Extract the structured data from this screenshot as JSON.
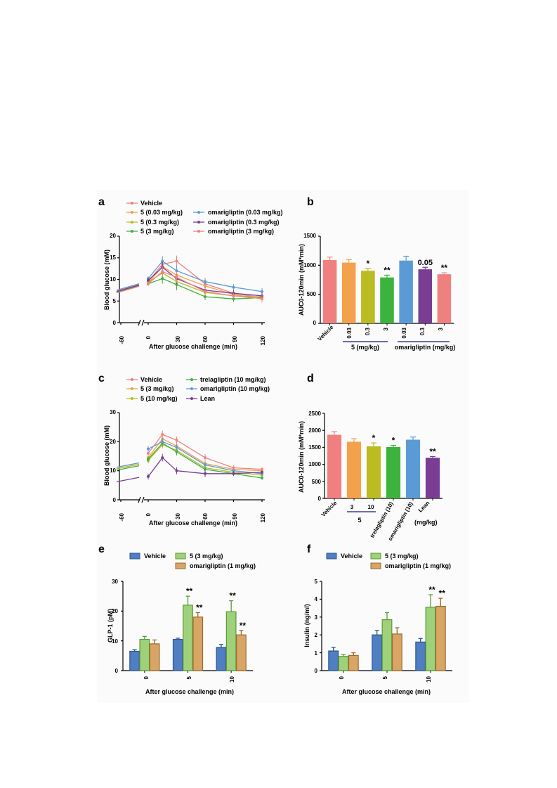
{
  "colors": {
    "vehicle": "#f08080",
    "dose_0_03": "#f4a14b",
    "dose_0_3": "#bbbb22",
    "dose_3": "#3cb33c",
    "omari_0_03": "#5b9bd5",
    "omari_0_3": "#7a3d94",
    "omari_3": "#ef8080",
    "lean": "#7a3d94",
    "bar_vehicle": "#4f7fc2",
    "bar_5": "#9fd07a",
    "bar_omari": "#d9a564"
  },
  "chart_data": [
    {
      "panel": "a",
      "type": "line",
      "ylabel": "Blood glucose (mM)",
      "xlabel": "After glucose challenge (min)",
      "x": [
        -60,
        0,
        15,
        30,
        60,
        90,
        120
      ],
      "xticks": [
        "-60",
        "0",
        "30",
        "60",
        "90",
        "120"
      ],
      "ylim": [
        0,
        20
      ],
      "yticks": [
        "0",
        "5",
        "10",
        "15",
        "20"
      ],
      "legend": [
        "Vehicle",
        "5 (0.03 mg/kg)",
        "5 (0.3 mg/kg)",
        "5 (3 mg/kg)",
        "omarigliptin (0.03 mg/kg)",
        "omarigliptin (0.3 mg/kg)",
        "omarigliptin (3 mg/kg)"
      ],
      "series": [
        {
          "name": "Vehicle",
          "values": [
            7.6,
            9.5,
            13.5,
            14.2,
            9.0,
            6.8,
            5.8
          ]
        },
        {
          "name": "5 (0.03 mg/kg)",
          "values": [
            7.4,
            9.2,
            13.0,
            11.0,
            8.5,
            6.5,
            5.5
          ]
        },
        {
          "name": "5 (0.3 mg/kg)",
          "values": [
            7.5,
            9.4,
            11.5,
            9.5,
            7.0,
            6.2,
            6.0
          ]
        },
        {
          "name": "5 (3 mg/kg)",
          "values": [
            7.3,
            9.0,
            10.2,
            8.8,
            6.0,
            5.5,
            5.8
          ]
        },
        {
          "name": "omarigliptin (0.03 mg/kg)",
          "values": [
            7.8,
            10.2,
            14.2,
            12.0,
            9.5,
            8.2,
            7.2
          ]
        },
        {
          "name": "omarigliptin (0.3 mg/kg)",
          "values": [
            7.5,
            9.8,
            12.8,
            10.2,
            7.5,
            6.8,
            6.2
          ]
        },
        {
          "name": "omarigliptin (3 mg/kg)",
          "values": [
            7.2,
            9.0,
            11.8,
            10.5,
            7.2,
            6.2,
            5.6
          ]
        }
      ]
    },
    {
      "panel": "b",
      "type": "bar",
      "ylabel": "AUC0-120min (mM*min)",
      "categories": [
        "Vehicle",
        "0.03",
        "0.3",
        "3",
        "0.03",
        "0.3",
        "3"
      ],
      "values": [
        1090,
        1045,
        905,
        790,
        1080,
        930,
        845
      ],
      "errors": [
        50,
        50,
        40,
        40,
        75,
        35,
        25
      ],
      "ylim": [
        0,
        1500
      ],
      "yticks": [
        "0",
        "500",
        "1000",
        "1500"
      ],
      "annotations": [
        "",
        "",
        "*",
        "**",
        "",
        "0.05",
        "**"
      ],
      "group_labels": [
        "5 (mg/kg)",
        "omarigliptin (mg/kg)"
      ]
    },
    {
      "panel": "c",
      "type": "line",
      "ylabel": "Blood glucose (mM)",
      "xlabel": "After glucose challenge (min)",
      "x": [
        -60,
        0,
        15,
        30,
        60,
        90,
        120
      ],
      "xticks": [
        "-60",
        "0",
        "30",
        "60",
        "90",
        "120"
      ],
      "ylim": [
        0,
        30
      ],
      "yticks": [
        "0",
        "10",
        "20",
        "30"
      ],
      "legend": [
        "Vehicle",
        "5 (3 mg/kg)",
        "5 (10 mg/kg)",
        "trelagliptin (10 mg/kg)",
        "omarigliptin (10 mg/kg)",
        "Lean"
      ],
      "series": [
        {
          "name": "Vehicle",
          "values": [
            11.0,
            16.0,
            22.5,
            20.5,
            14.5,
            11.0,
            10.5
          ]
        },
        {
          "name": "5 (3 mg/kg)",
          "values": [
            11.5,
            14.5,
            21.0,
            18.5,
            12.5,
            10.5,
            10.0
          ]
        },
        {
          "name": "5 (10 mg/kg)",
          "values": [
            11.0,
            13.5,
            19.0,
            17.0,
            11.0,
            9.5,
            8.5
          ]
        },
        {
          "name": "trelagliptin (10 mg/kg)",
          "values": [
            10.5,
            14.0,
            19.5,
            16.5,
            10.5,
            9.0,
            7.5
          ]
        },
        {
          "name": "omarigliptin (10 mg/kg)",
          "values": [
            11.5,
            17.5,
            20.0,
            18.0,
            12.0,
            10.0,
            9.0
          ]
        },
        {
          "name": "Lean",
          "values": [
            6.5,
            8.0,
            14.5,
            10.0,
            9.0,
            9.0,
            9.5
          ]
        }
      ]
    },
    {
      "panel": "d",
      "type": "bar",
      "ylabel": "AUC0-120min (mM*min)",
      "categories": [
        "Vehicle",
        "3",
        "10",
        "trelagliptin (10)",
        "omarigliptin (10)",
        "Lean"
      ],
      "values": [
        1870,
        1665,
        1530,
        1510,
        1725,
        1195
      ],
      "errors": [
        90,
        90,
        100,
        50,
        80,
        35
      ],
      "ylim": [
        0,
        2500
      ],
      "yticks": [
        "0",
        "500",
        "1000",
        "1500",
        "2000",
        "2500"
      ],
      "annotations": [
        "",
        "",
        "*",
        "*",
        "",
        "**"
      ],
      "group_labels": [
        "5",
        "(mg/kg)"
      ]
    },
    {
      "panel": "e",
      "type": "bar",
      "ylabel": "GLP-1 (pM)",
      "xlabel": "After glucose challenge (min)",
      "categories": [
        "0",
        "5",
        "10"
      ],
      "ylim": [
        0,
        30
      ],
      "yticks": [
        "0",
        "10",
        "20",
        "30"
      ],
      "legend": [
        "Vehicle",
        "5 (3 mg/kg)",
        "omarigliptin (1 mg/kg)"
      ],
      "series": [
        {
          "name": "Vehicle",
          "values": [
            6.5,
            10.5,
            7.8
          ],
          "errors": [
            0.5,
            0.4,
            1.0
          ]
        },
        {
          "name": "5 (3 mg/kg)",
          "values": [
            10.5,
            22.0,
            19.8
          ],
          "errors": [
            1.0,
            3.0,
            3.7
          ]
        },
        {
          "name": "omarigliptin (1 mg/kg)",
          "values": [
            9.0,
            18.0,
            12.0
          ],
          "errors": [
            1.3,
            1.5,
            1.5
          ]
        }
      ],
      "annotations": [
        [
          "",
          "",
          ""
        ],
        [
          "",
          "**",
          "**"
        ],
        [
          "",
          "**",
          "**"
        ]
      ]
    },
    {
      "panel": "f",
      "type": "bar",
      "ylabel": "Insulin (ng/ml)",
      "xlabel": "After glucose challenge (min)",
      "categories": [
        "0",
        "5",
        "10"
      ],
      "ylim": [
        0,
        5
      ],
      "yticks": [
        "0",
        "1",
        "2",
        "3",
        "4",
        "5"
      ],
      "legend": [
        "Vehicle",
        "5 (3 mg/kg)",
        "omarigliptin (1 mg/kg)"
      ],
      "series": [
        {
          "name": "Vehicle",
          "values": [
            1.1,
            2.0,
            1.6
          ],
          "errors": [
            0.2,
            0.25,
            0.2
          ]
        },
        {
          "name": "5 (3 mg/kg)",
          "values": [
            0.8,
            2.85,
            3.55
          ],
          "errors": [
            0.1,
            0.4,
            0.7
          ]
        },
        {
          "name": "omarigliptin (1 mg/kg)",
          "values": [
            0.85,
            2.05,
            3.6
          ],
          "errors": [
            0.15,
            0.35,
            0.45
          ]
        }
      ],
      "annotations": [
        [
          "",
          "",
          ""
        ],
        [
          "",
          "",
          "**"
        ],
        [
          "",
          "",
          "**"
        ]
      ]
    }
  ]
}
